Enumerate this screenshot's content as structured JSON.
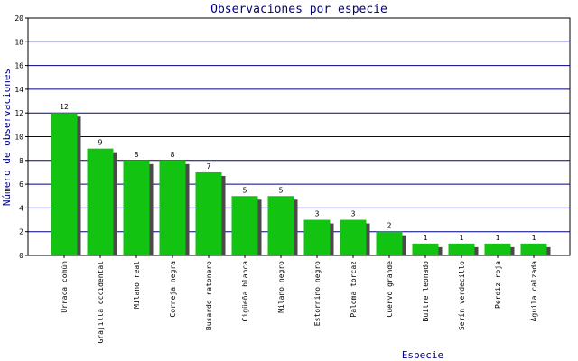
{
  "chart_data": {
    "type": "bar",
    "title": "Observaciones por especie",
    "xlabel": "Especie",
    "ylabel": "Número de observaciones",
    "ylim": [
      0,
      20
    ],
    "yticks": [
      0,
      2,
      4,
      6,
      8,
      10,
      12,
      14,
      16,
      18,
      20
    ],
    "grid": true,
    "categories": [
      "Urraca común",
      "Grajilla occidental",
      "Milano real",
      "Corneja negra",
      "Busardo ratonero",
      "Cigüeña blanca",
      "Milano negro",
      "Estornino negro",
      "Paloma torcaz",
      "Cuervo grande",
      "Buitre leonado",
      "Serín verdecillo",
      "Perdiz roja",
      "Águila calzada"
    ],
    "values": [
      12,
      9,
      8,
      8,
      7,
      5,
      5,
      3,
      3,
      2,
      1,
      1,
      1,
      1
    ],
    "colors": {
      "bar": "#12c312",
      "shadow": "#4a4a4a",
      "grid": "#000080",
      "axis": "#000000",
      "title": "#000080"
    }
  }
}
